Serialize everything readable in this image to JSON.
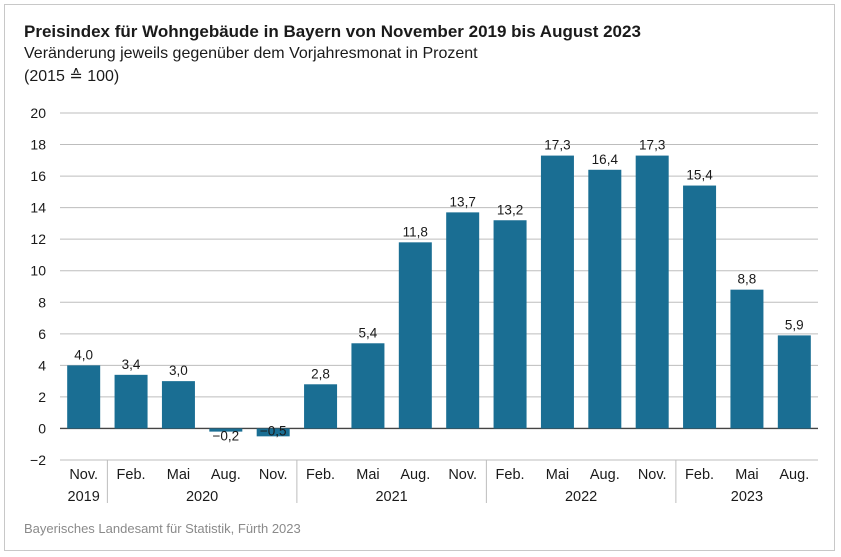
{
  "chart_data": {
    "type": "bar",
    "title": "Preisindex für Wohngebäude in Bayern von November 2019 bis August 2023",
    "subtitle": "Veränderung jeweils gegenüber dem Vorjahresmonat in Prozent",
    "subtitle2": "(2015 ≙ 100)",
    "source": "Bayerisches Landesamt für Statistik, Fürth 2023",
    "categories": [
      "Nov.",
      "Feb.",
      "Mai",
      "Aug.",
      "Nov.",
      "Feb.",
      "Mai",
      "Aug.",
      "Nov.",
      "Feb.",
      "Mai",
      "Aug.",
      "Nov.",
      "Feb.",
      "Mai",
      "Aug."
    ],
    "values": [
      4.0,
      3.4,
      3.0,
      -0.2,
      -0.5,
      2.8,
      5.4,
      11.8,
      13.7,
      13.2,
      17.3,
      16.4,
      17.3,
      15.4,
      8.8,
      5.9
    ],
    "value_labels": [
      "4,0",
      "3,4",
      "3,0",
      "−0,2",
      "−0,5",
      "2,8",
      "5,4",
      "11,8",
      "13,7",
      "13,2",
      "17,3",
      "16,4",
      "17,3",
      "15,4",
      "8,8",
      "5,9"
    ],
    "year_groups": [
      {
        "label": "2019",
        "start": 0,
        "end": 0
      },
      {
        "label": "2020",
        "start": 1,
        "end": 4
      },
      {
        "label": "2021",
        "start": 5,
        "end": 8
      },
      {
        "label": "2022",
        "start": 9,
        "end": 12
      },
      {
        "label": "2023",
        "start": 13,
        "end": 15
      }
    ],
    "yticks": [
      20,
      18,
      16,
      14,
      12,
      10,
      8,
      6,
      4,
      2,
      0,
      -2
    ],
    "ylim": [
      -2,
      20
    ],
    "grid": true,
    "bar_color": "#1a6e93",
    "xlabel": "",
    "ylabel": ""
  }
}
